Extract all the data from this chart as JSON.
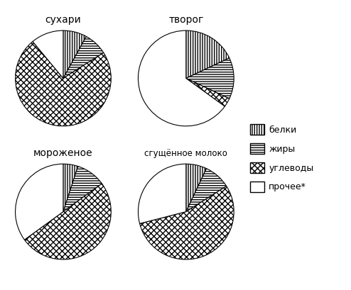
{
  "charts": [
    {
      "title": "сухари",
      "values": [
        8,
        8,
        73,
        11
      ],
      "startangle": 90
    },
    {
      "title": "творог",
      "values": [
        18,
        14,
        3,
        65
      ],
      "startangle": 90
    },
    {
      "title": "мороженое",
      "values": [
        5,
        10,
        50,
        35
      ],
      "startangle": 90
    },
    {
      "title": "сгущённое молоко",
      "values": [
        7,
        9,
        55,
        29
      ],
      "startangle": 90
    }
  ],
  "legend_labels": [
    "белки",
    "жиры",
    "углеводы",
    "прочее*"
  ],
  "background_color": "#ffffff",
  "title_fontsize": 10,
  "legend_fontsize": 9
}
